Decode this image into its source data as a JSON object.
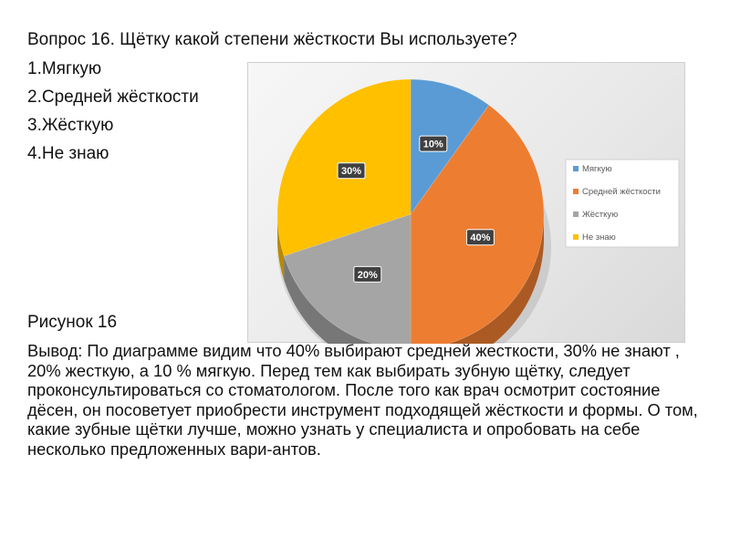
{
  "question": {
    "title": "Вопрос 16. Щётку какой степени жёсткости Вы используете?",
    "options": [
      "1.Мягкую",
      "2.Средней жёсткости",
      "3.Жёсткую",
      "4.Не знаю"
    ]
  },
  "chart_data": {
    "type": "pie",
    "categories": [
      "Мягкую",
      "Средней жёсткости",
      "Жёсткую",
      "Не знаю"
    ],
    "values": [
      10,
      40,
      20,
      30
    ],
    "data_labels": [
      "10%",
      "40%",
      "20%",
      "30%"
    ],
    "colors": [
      "#5B9BD5",
      "#ED7D31",
      "#A5A5A5",
      "#FFC000"
    ],
    "style": "3d",
    "legend_position": "right"
  },
  "figure_caption": "Рисунок 16",
  "conclusion": "Вывод: По диаграмме видим что 40% выбирают средней жесткости, 30% не знают , 20% жесткую, а 10 % мягкую. Перед тем как выбирать зубную щётку, следует проконсультироваться со стоматологом. После того как врач осмотрит состояние дёсен, он посоветует приобрести инструмент подходящей жёсткости и формы. О том, какие зубные щётки лучше, можно узнать у специалиста и опробовать на себе несколько предложенных вари-антов."
}
